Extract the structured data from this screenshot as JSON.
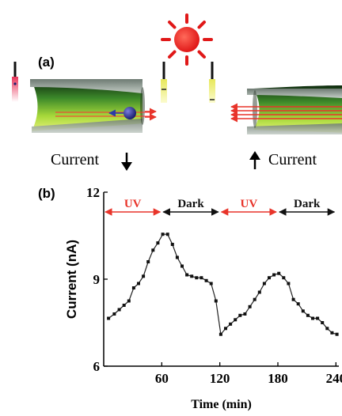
{
  "panel_a": {
    "label": "(a)",
    "current_left": "Current",
    "current_right": "Current",
    "left_arrow": "down",
    "right_arrow": "up"
  },
  "panel_b": {
    "label": "(b)"
  },
  "chart_data": {
    "type": "line",
    "xlabel": "Time (min)",
    "ylabel": "Current (nA)",
    "xlim": [
      0,
      243
    ],
    "ylim": [
      6,
      12
    ],
    "xticks": [
      60,
      120,
      180,
      240
    ],
    "yticks": [
      6,
      9,
      12
    ],
    "phases": [
      {
        "label": "UV",
        "start": 0,
        "end": 60,
        "color": "#e8342a"
      },
      {
        "label": "Dark",
        "start": 60,
        "end": 120,
        "color": "#111111"
      },
      {
        "label": "UV",
        "start": 120,
        "end": 180,
        "color": "#e8342a"
      },
      {
        "label": "Dark",
        "start": 180,
        "end": 240,
        "color": "#111111"
      }
    ],
    "series": [
      {
        "x": [
          5,
          11,
          16,
          21,
          26,
          31,
          36,
          41,
          46,
          51,
          56,
          61,
          66,
          71,
          76,
          81,
          86,
          91,
          96,
          101,
          106,
          111,
          116,
          121,
          126,
          131,
          136,
          141,
          146,
          151,
          156,
          161,
          166,
          171,
          176,
          181,
          186,
          191,
          196,
          201,
          206,
          211,
          216,
          221,
          226,
          231,
          236,
          241
        ],
        "y": [
          7.65,
          7.8,
          7.95,
          8.1,
          8.25,
          8.7,
          8.85,
          9.1,
          9.6,
          10.0,
          10.25,
          10.55,
          10.55,
          10.2,
          9.75,
          9.45,
          9.15,
          9.1,
          9.05,
          9.05,
          8.95,
          8.85,
          8.25,
          7.1,
          7.3,
          7.45,
          7.6,
          7.75,
          7.8,
          8.05,
          8.3,
          8.55,
          8.85,
          9.05,
          9.15,
          9.2,
          9.05,
          8.85,
          8.3,
          8.15,
          7.9,
          7.75,
          7.65,
          7.65,
          7.5,
          7.3,
          7.15,
          7.1
        ]
      }
    ]
  }
}
